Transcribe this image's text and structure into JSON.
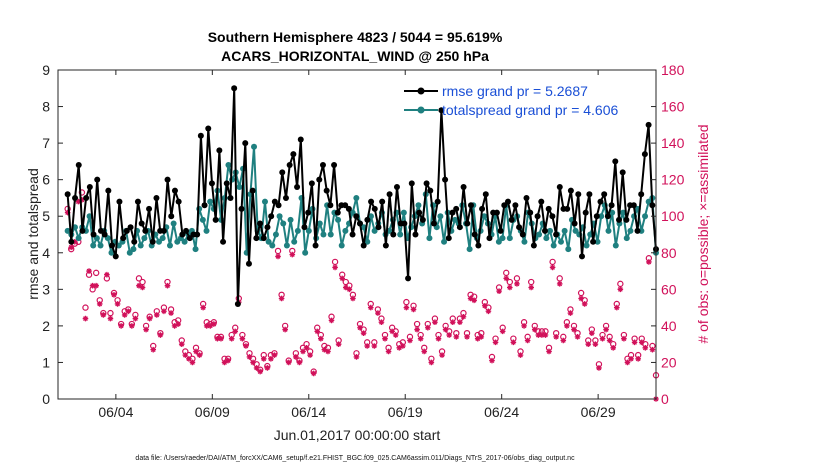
{
  "chart_data": {
    "type": "line",
    "title": "Southern Hemisphere 4823 / 5044 = 95.619%",
    "subtitle": "ACARS_HORIZONTAL_WIND @ 250 hPa",
    "xlabel": "Jun.01,2017 00:00:00 start",
    "ylabel": "rmse and totalspread",
    "y2label": "# of obs: o=possible; ×=assimilated",
    "xlim": [
      1,
      32
    ],
    "ylim": [
      0,
      9
    ],
    "y2lim": [
      0,
      180
    ],
    "x_ticks": [
      4,
      9,
      14,
      19,
      24,
      29
    ],
    "x_tick_labels": [
      "06/04",
      "06/09",
      "06/14",
      "06/19",
      "06/24",
      "06/29"
    ],
    "y_ticks": [
      "0",
      "1",
      "2",
      "3",
      "4",
      "5",
      "6",
      "7",
      "8",
      "9"
    ],
    "y2_ticks": [
      "0",
      "20",
      "40",
      "60",
      "80",
      "100",
      "120",
      "140",
      "160",
      "180"
    ],
    "legend_position": "top-right",
    "footer": "data file: /Users/raeder/DAI/ATM_forcXX/CAM6_setup/f.e21.FHIST_BGC.f09_025.CAM6assim.011/Diags_NTrS_2017-06/obs_diag_output.nc",
    "colors": {
      "rmse": "#000000",
      "totalspread": "#1f8080",
      "obs": "#d1115a"
    },
    "series": [
      {
        "name": "rmse grand pr = 5.2687",
        "color": "#000000",
        "values": [
          5.6,
          4.3,
          5.5,
          6.4,
          4.6,
          5.5,
          5.8,
          4.5,
          6.0,
          4.6,
          4.5,
          5.7,
          4.2,
          3.9,
          5.4,
          4.4,
          4.6,
          4.7,
          4.3,
          5.4,
          4.8,
          4.6,
          5.2,
          4.3,
          5.5,
          4.6,
          4.6,
          6.0,
          5.0,
          5.7,
          5.4,
          4.5,
          4.6,
          4.4,
          4.5,
          4.5,
          7.2,
          5.3,
          7.4,
          5.9,
          4.9,
          6.8,
          4.3,
          5.9,
          5.5,
          8.5,
          2.6,
          5.2,
          7.0,
          3.7,
          5.7,
          4.4,
          4.8,
          4.4,
          4.7,
          5.0,
          5.4,
          5.3,
          6.2,
          5.5,
          6.4,
          6.7,
          5.8,
          7.1,
          4.7,
          5.1,
          5.9,
          4.2,
          6.0,
          6.4,
          5.7,
          5.3,
          6.4,
          5.1,
          5.3,
          5.3,
          5.2,
          4.5,
          5.0,
          4.8,
          4.2,
          4.9,
          5.4,
          5.2,
          4.7,
          5.4,
          4.2,
          5.6,
          4.5,
          5.8,
          4.8,
          4.8,
          3.3,
          5.9,
          4.5,
          5.1,
          4.9,
          5.9,
          5.7,
          4.8,
          5.4,
          7.9,
          6.0,
          4.4,
          5.1,
          5.2,
          4.7,
          5.8,
          4.8,
          5.3,
          4.5,
          4.2,
          5.2,
          5.6,
          4.4,
          5.1,
          5.1,
          4.6,
          5.3,
          5.4,
          4.9,
          5.3,
          4.7,
          4.5,
          5.5,
          5.1,
          4.2,
          5.0,
          5.4,
          4.6,
          5.2,
          5.0,
          4.5,
          5.8,
          5.2,
          5.2,
          5.7,
          4.8,
          5.6,
          3.9,
          5.1,
          5.6,
          4.3,
          5.0,
          5.4,
          5.6,
          5.0,
          5.3,
          6.5,
          4.9,
          6.2,
          4.9,
          5.3,
          5.3,
          4.6,
          5.6,
          6.7,
          7.5,
          5.3,
          4.1
        ]
      },
      {
        "name": "totalspread grand pr = 4.606",
        "color": "#1f8080",
        "values": [
          4.6,
          4.5,
          4.7,
          4.4,
          4.7,
          4.6,
          5.0,
          4.2,
          4.4,
          4.2,
          4.6,
          4.4,
          4.0,
          4.3,
          4.2,
          4.3,
          4.6,
          4.0,
          4.1,
          4.6,
          4.2,
          4.4,
          4.6,
          4.2,
          4.5,
          4.3,
          4.4,
          4.7,
          4.2,
          4.8,
          4.3,
          4.4,
          4.3,
          4.5,
          4.6,
          4.1,
          5.2,
          4.9,
          4.6,
          5.4,
          5.2,
          5.7,
          4.9,
          5.5,
          6.4,
          6.0,
          6.2,
          5.8,
          6.3,
          4.0,
          5.6,
          6.9,
          4.6,
          4.4,
          5.4,
          4.3,
          4.2,
          4.5,
          5.0,
          4.8,
          4.2,
          4.9,
          4.3,
          4.6,
          5.5,
          4.0,
          4.6,
          5.2,
          4.4,
          4.8,
          4.5,
          5.3,
          4.5,
          5.1,
          4.9,
          4.2,
          4.6,
          4.8,
          5.1,
          5.5,
          4.8,
          4.7,
          4.3,
          5.0,
          4.6,
          4.8,
          5.1,
          4.5,
          4.6,
          4.9,
          5.1,
          4.5,
          5.1,
          4.4,
          4.7,
          5.0,
          5.3,
          4.8,
          5.6,
          4.4,
          5.3,
          4.7,
          5.0,
          4.3,
          5.1,
          4.6,
          4.9,
          4.8,
          5.3,
          4.8,
          4.1,
          5.3,
          4.4,
          4.6,
          5.0,
          4.8,
          4.5,
          5.0,
          4.3,
          4.4,
          5.3,
          4.4,
          4.9,
          5.0,
          4.6,
          4.3,
          5.1,
          4.8,
          4.4,
          4.5,
          4.8,
          4.4,
          4.6,
          4.2,
          4.5,
          4.3,
          4.6,
          4.1,
          4.9,
          4.6,
          4.5,
          4.7,
          4.2,
          4.5,
          4.8,
          4.3,
          5.0,
          5.3,
          4.6,
          5.1,
          4.2,
          4.8,
          5.1,
          4.4,
          4.6,
          5.0,
          5.2,
          4.6,
          5.0,
          5.4,
          5.5,
          4.0
        ]
      }
    ],
    "obs_possible": [
      104,
      82,
      85,
      86,
      113,
      50,
      68,
      60,
      69,
      54,
      47,
      66,
      47,
      58,
      54,
      41,
      48,
      49,
      41,
      46,
      66,
      64,
      40,
      45,
      29,
      48,
      36,
      50,
      64,
      49,
      42,
      43,
      32,
      26,
      24,
      22,
      28,
      25,
      52,
      42,
      41,
      42,
      34,
      34,
      22,
      22,
      35,
      39,
      55,
      35,
      30,
      25,
      22,
      19,
      16,
      24,
      18,
      24,
      25,
      81,
      57,
      40,
      21,
      81,
      25,
      21,
      28,
      30,
      26,
      15,
      39,
      35,
      29,
      28,
      45,
      75,
      32,
      68,
      64,
      62,
      57,
      25,
      41,
      38,
      31,
      52,
      31,
      49,
      44,
      35,
      28,
      39,
      37,
      30,
      31,
      53,
      34,
      51,
      41,
      35,
      28,
      41,
      22,
      44,
      35,
      26,
      40,
      37,
      44,
      36,
      44,
      47,
      36,
      57,
      56,
      35,
      36,
      53,
      50,
      23,
      33,
      61,
      39,
      69,
      64,
      33,
      66,
      26,
      42,
      34,
      64,
      40,
      37,
      37,
      37,
      28,
      75,
      36,
      66,
      34,
      42,
      49,
      40,
      36,
      58,
      54,
      32,
      38,
      32,
      19,
      35,
      40,
      34,
      30,
      52,
      63,
      35,
      22,
      24,
      33,
      24,
      33,
      30,
      77,
      29,
      13
    ],
    "obs_assimilated": [
      102,
      83,
      86,
      108,
      109,
      44,
      70,
      62,
      62,
      52,
      46,
      68,
      44,
      57,
      52,
      40,
      46,
      48,
      40,
      44,
      62,
      61,
      38,
      44,
      27,
      46,
      35,
      48,
      62,
      47,
      40,
      41,
      30,
      24,
      22,
      20,
      26,
      24,
      50,
      40,
      40,
      41,
      33,
      33,
      20,
      21,
      33,
      37,
      53,
      33,
      29,
      23,
      20,
      17,
      15,
      22,
      17,
      22,
      24,
      78,
      55,
      38,
      20,
      79,
      23,
      20,
      26,
      28,
      24,
      14,
      37,
      33,
      27,
      26,
      43,
      72,
      30,
      66,
      61,
      60,
      55,
      23,
      39,
      36,
      29,
      50,
      29,
      47,
      42,
      33,
      26,
      37,
      35,
      28,
      29,
      50,
      32,
      49,
      38,
      33,
      26,
      39,
      20,
      42,
      33,
      24,
      38,
      35,
      42,
      34,
      42,
      45,
      34,
      55,
      54,
      33,
      34,
      51,
      48,
      21,
      31,
      59,
      37,
      66,
      61,
      31,
      63,
      24,
      40,
      32,
      61,
      38,
      35,
      35,
      35,
      26,
      72,
      34,
      63,
      32,
      40,
      47,
      38,
      34,
      55,
      52,
      30,
      36,
      30,
      17,
      33,
      38,
      32,
      28,
      50,
      60,
      33,
      20,
      22,
      31,
      22,
      31,
      28,
      75,
      27,
      0
    ]
  }
}
